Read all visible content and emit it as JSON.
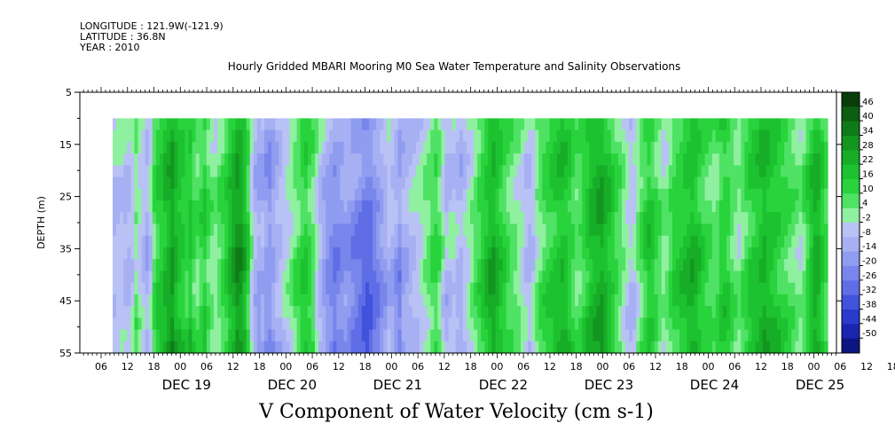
{
  "header": {
    "longitude": "LONGITUDE : 121.9W(-121.9)",
    "latitude": "LATITUDE : 36.8N",
    "year": "YEAR : 2010"
  },
  "chart_data": {
    "type": "heatmap",
    "title": "Hourly Gridded MBARI Mooring M0 Sea Water Temperature and Salinity Observations",
    "xlabel": "V Component of Water Velocity (cm s-1)",
    "ylabel": "DEPTH (m)",
    "ylim": [
      55,
      5
    ],
    "y_ticks": [
      5,
      15,
      25,
      35,
      45,
      55
    ],
    "data_depth_range": [
      10,
      55
    ],
    "hour_ticks": [
      "06",
      "12",
      "18",
      "00",
      "06",
      "12",
      "18",
      "00",
      "06",
      "12",
      "18",
      "00",
      "06",
      "12",
      "18",
      "00",
      "06",
      "12",
      "18",
      "00",
      "06",
      "12",
      "18",
      "00",
      "06",
      "12",
      "18",
      "00",
      "06",
      "12",
      "18",
      "00"
    ],
    "day_labels": [
      "DEC 19",
      "DEC 20",
      "DEC 21",
      "DEC 22",
      "DEC 23",
      "DEC 24",
      "DEC 25"
    ],
    "colorbar_levels": [
      46,
      40,
      34,
      28,
      22,
      16,
      10,
      4,
      -2,
      -8,
      -14,
      -20,
      -26,
      -32,
      -38,
      -44,
      -50
    ],
    "colorbar_colors": [
      "#0a3d0a",
      "#0d5e12",
      "#0f7a18",
      "#13951f",
      "#17ad27",
      "#1cc22f",
      "#28d33c",
      "#4fe264",
      "#8ff0a0",
      "#b9c2f5",
      "#a6b0f3",
      "#8f9cf0",
      "#7886ec",
      "#5f6de6",
      "#4152dc",
      "#2a3acd",
      "#1a25b0",
      "#0d1580"
    ],
    "time_columns": [
      -7,
      -6,
      -5,
      -7,
      -8,
      -4,
      3,
      -2,
      -6,
      -10,
      -4,
      8,
      14,
      16,
      20,
      24,
      28,
      22,
      18,
      15,
      12,
      16,
      10,
      6,
      10,
      14,
      8,
      4,
      2,
      6,
      10,
      14,
      20,
      24,
      30,
      28,
      22,
      12,
      -2,
      -10,
      -14,
      -12,
      -16,
      -18,
      -14,
      -10,
      -8,
      -4,
      -2,
      2,
      6,
      8,
      12,
      14,
      10,
      6,
      2,
      -4,
      -8,
      -12,
      -16,
      -18,
      -16,
      -14,
      -12,
      -14,
      -16,
      -18,
      -20,
      -22,
      -24,
      -22,
      -18,
      -16,
      -12,
      -8,
      -4,
      -6,
      -10,
      -14,
      -12,
      -10,
      -8,
      -6,
      -4,
      -2,
      2,
      4,
      8,
      10,
      6,
      -2,
      -8,
      -6,
      -4,
      -8,
      -10,
      -6,
      -2,
      2,
      6,
      10,
      14,
      18,
      22,
      24,
      20,
      16,
      12,
      8,
      6,
      4,
      2,
      -2,
      -6,
      -8,
      -4,
      2,
      6,
      10,
      12,
      14,
      16,
      18,
      20,
      18,
      14,
      10,
      6,
      8,
      12,
      16,
      20,
      22,
      24,
      26,
      22,
      18,
      14,
      10,
      6,
      2,
      -2,
      -6,
      -4,
      2,
      8,
      12,
      16,
      14,
      10,
      6,
      2,
      4,
      8,
      12,
      14,
      16,
      18,
      20,
      22,
      20,
      16,
      12,
      10,
      8,
      6,
      8,
      12,
      14,
      12,
      8,
      4,
      2,
      6,
      10,
      14,
      16,
      18,
      20,
      22,
      20,
      18,
      16,
      14,
      12,
      10,
      8,
      6,
      4,
      2,
      6,
      12,
      18,
      24,
      22,
      16,
      10
    ]
  }
}
